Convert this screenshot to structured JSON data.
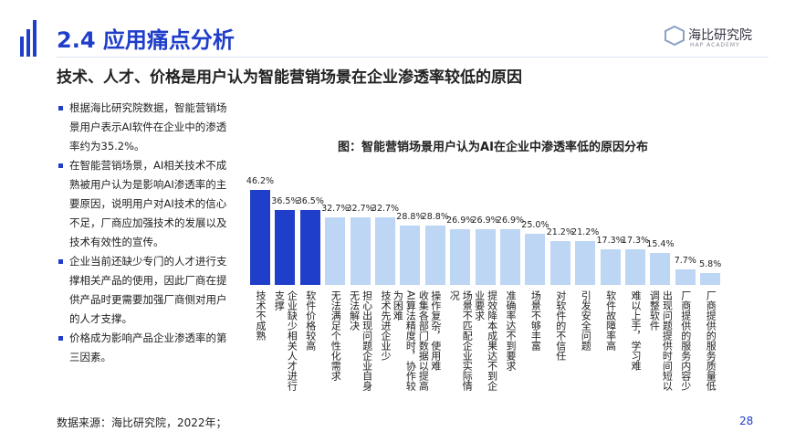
{
  "header": {
    "title": "2.4 应用痛点分析",
    "logo_name": "海比研究院",
    "logo_sub": "HAP ACADEMY",
    "subtitle": "技术、人才、价格是用户认为智能营销场景在企业渗透率较低的原因"
  },
  "bullets": [
    "根据海比研究院数据，智能营销场景用户表示AI软件在企业中的渗透率约为35.2%。",
    "在智能营销场景，AI相关技术不成熟被用户认为是影响AI渗透率的主要原因，说明用户对AI技术的信心不足，厂商应加强技术的发展以及技术有效性的宣传。",
    "企业当前还缺少专门的人才进行支撑相关产品的使用，因此厂商在提供产品时更需要加强厂商侧对用户的人才支撑。",
    "价格成为影响产品企业渗透率的第三因素。"
  ],
  "chart_data": {
    "type": "bar",
    "title": "图：智能营销场景用户认为AI在企业中渗透率低的原因分布",
    "categories": [
      "技术不成熟",
      "企业缺少相关人才进行支撑",
      "软件价格较高",
      "无法满足个性化需求",
      "担心出现问题企业自身无法解决",
      "技术先进企业少",
      "收集各部门数据以提高AI算法精度时，协作较为困难",
      "操作复杂，使用难",
      "场景不匹配企业实际情况",
      "提效降本成果达不到企业要求",
      "准确率达不到要求",
      "场景不够丰富",
      "对软件的不信任",
      "引发安全问题",
      "软件故障率高",
      "难以上手，学习难",
      "出现问题提供时间短以调整软件",
      "厂商提供的服务内容少",
      "厂商提供的服务质量低"
    ],
    "values": [
      46.2,
      36.5,
      36.5,
      32.7,
      32.7,
      32.7,
      28.8,
      28.8,
      26.9,
      26.9,
      26.9,
      25.0,
      21.2,
      21.2,
      17.3,
      17.3,
      15.4,
      7.7,
      5.8
    ],
    "value_labels": [
      "46.2%",
      "36.5%",
      "36.5%",
      "32.7%",
      "32.7%",
      "32.7%",
      "28.8%",
      "28.8%",
      "26.9%",
      "26.9%",
      "26.9%",
      "25.0%",
      "21.2%",
      "21.2%",
      "17.3%",
      "17.3%",
      "15.4%",
      "7.7%",
      "5.8%"
    ],
    "colors": [
      "#1f3ec9",
      "#1f3ec9",
      "#1f3ec9",
      "#bcd6f4",
      "#bcd6f4",
      "#bcd6f4",
      "#bcd6f4",
      "#bcd6f4",
      "#bcd6f4",
      "#bcd6f4",
      "#bcd6f4",
      "#bcd6f4",
      "#bcd6f4",
      "#bcd6f4",
      "#bcd6f4",
      "#bcd6f4",
      "#bcd6f4",
      "#bcd6f4",
      "#bcd6f4"
    ]
  },
  "footer": {
    "source": "数据来源：海比研究院，2022年；",
    "page": "28"
  }
}
